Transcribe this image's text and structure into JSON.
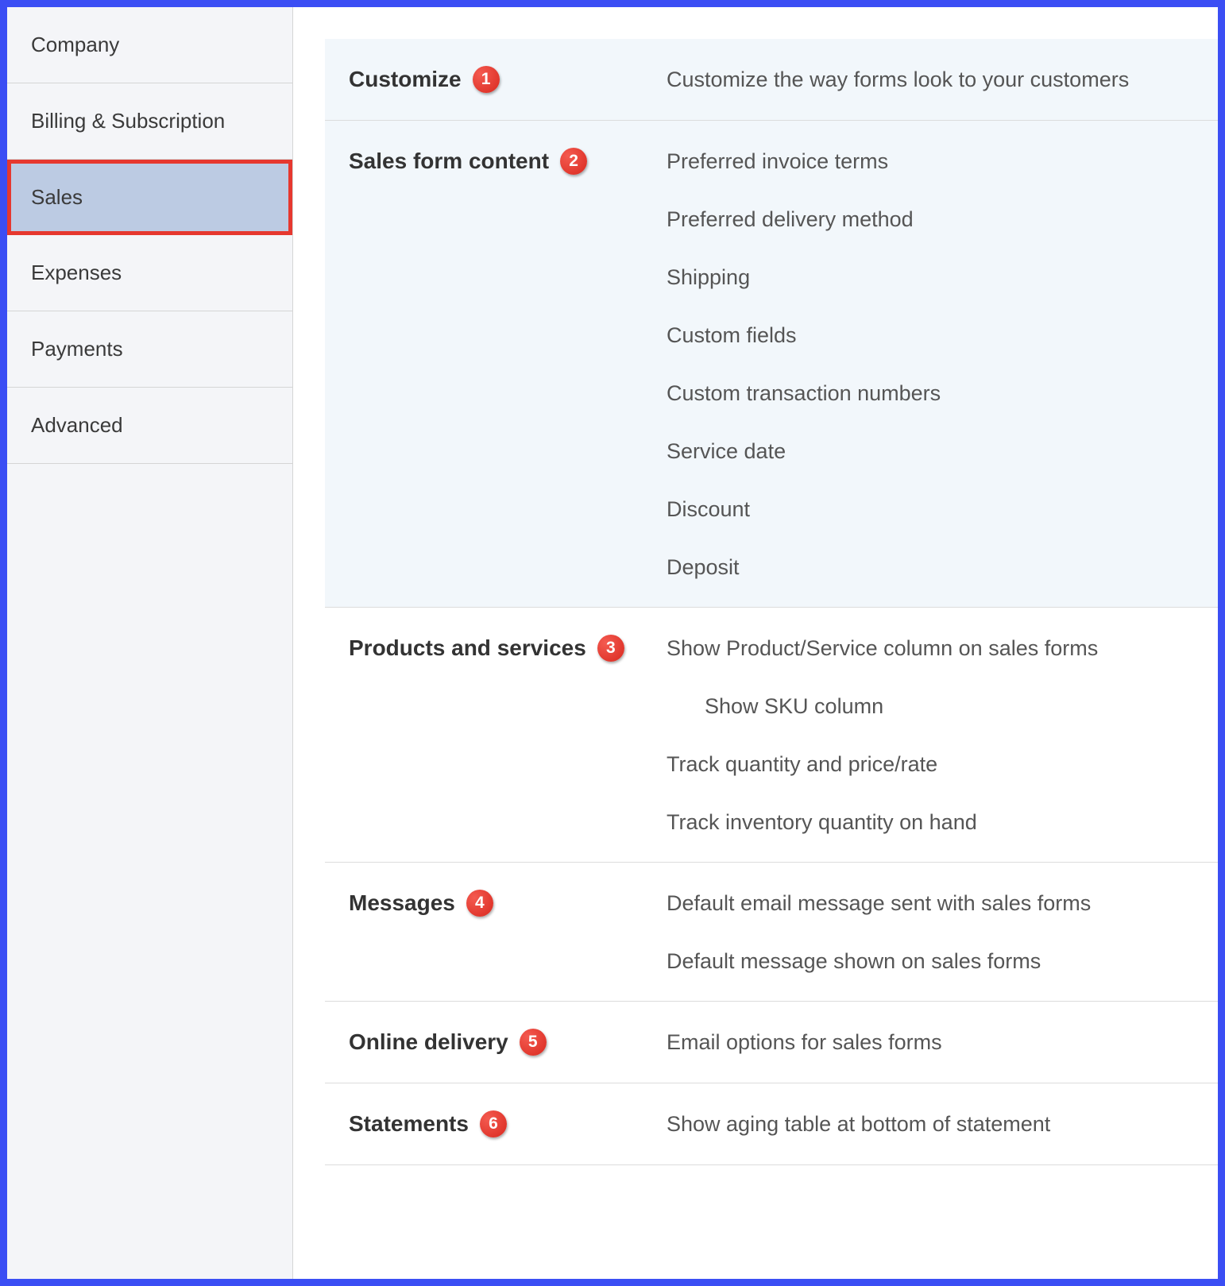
{
  "colors": {
    "frame_border": "#3b4ef4",
    "sidebar_bg": "#f4f5f8",
    "sidebar_border": "#d5d5d5",
    "selected_bg": "#bccbe3",
    "selected_border": "#e6382f",
    "section_highlight_bg": "#f2f7fb",
    "section_divider": "#dcdcdc",
    "title_color": "#333333",
    "item_color": "#555555",
    "badge_bg": "#d9291f",
    "badge_text": "#ffffff"
  },
  "sidebar": {
    "items": [
      {
        "label": "Company",
        "selected": false
      },
      {
        "label": "Billing & Subscription",
        "selected": false
      },
      {
        "label": "Sales",
        "selected": true
      },
      {
        "label": "Expenses",
        "selected": false
      },
      {
        "label": "Payments",
        "selected": false
      },
      {
        "label": "Advanced",
        "selected": false
      }
    ]
  },
  "sections": [
    {
      "title": "Customize",
      "badge": "1",
      "highlighted": true,
      "items": [
        {
          "text": "Customize the way forms look to your customers",
          "indent": false
        }
      ]
    },
    {
      "title": "Sales form content",
      "badge": "2",
      "highlighted": true,
      "items": [
        {
          "text": "Preferred invoice terms",
          "indent": false
        },
        {
          "text": "Preferred delivery method",
          "indent": false
        },
        {
          "text": "Shipping",
          "indent": false
        },
        {
          "text": "Custom fields",
          "indent": false
        },
        {
          "text": "Custom transaction numbers",
          "indent": false
        },
        {
          "text": "Service date",
          "indent": false
        },
        {
          "text": "Discount",
          "indent": false
        },
        {
          "text": "Deposit",
          "indent": false
        }
      ]
    },
    {
      "title": "Products and services",
      "badge": "3",
      "highlighted": false,
      "items": [
        {
          "text": "Show Product/Service column on sales forms",
          "indent": false
        },
        {
          "text": "Show SKU column",
          "indent": true
        },
        {
          "text": "Track quantity and price/rate",
          "indent": false
        },
        {
          "text": "Track inventory quantity on hand",
          "indent": false
        }
      ]
    },
    {
      "title": "Messages",
      "badge": "4",
      "highlighted": false,
      "items": [
        {
          "text": "Default email message sent with sales forms",
          "indent": false
        },
        {
          "text": "Default message shown on sales forms",
          "indent": false
        }
      ]
    },
    {
      "title": "Online delivery",
      "badge": "5",
      "highlighted": false,
      "items": [
        {
          "text": "Email options for sales forms",
          "indent": false
        }
      ]
    },
    {
      "title": "Statements",
      "badge": "6",
      "highlighted": false,
      "items": [
        {
          "text": "Show aging table at bottom of statement",
          "indent": false
        }
      ]
    }
  ]
}
